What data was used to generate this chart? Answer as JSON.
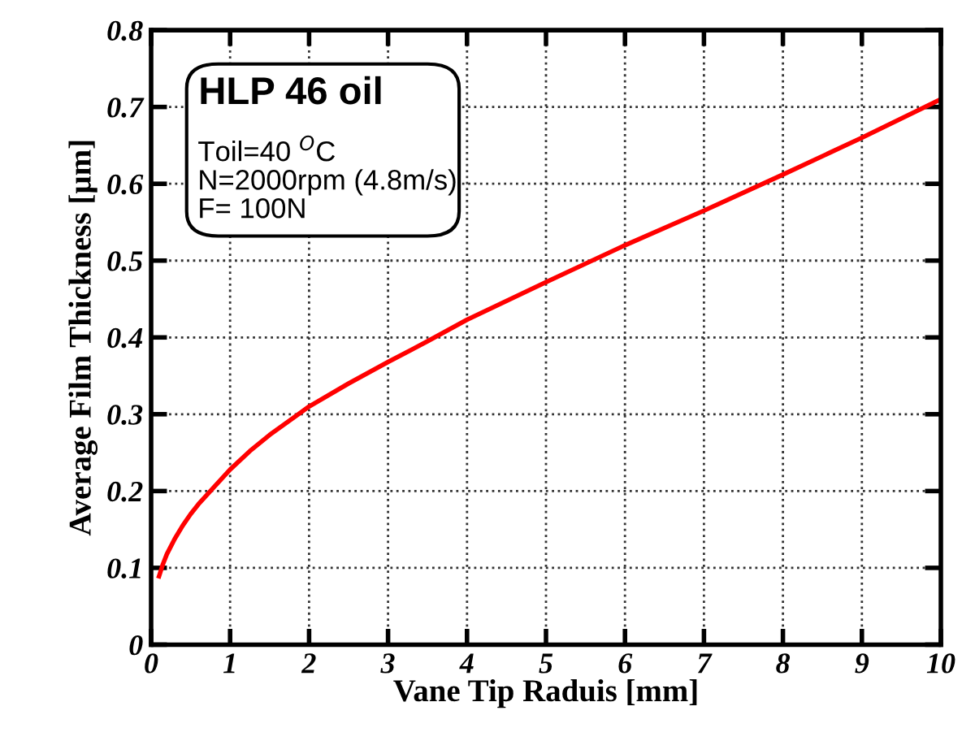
{
  "chart_data": {
    "type": "line",
    "xlabel": "Vane Tip Raduis [mm]",
    "ylabel": "Average Film Thickness [µm]",
    "annotations": [
      "HLP 46 oil",
      "Toil=40 $^{O}$C",
      "N=2000rpm (4.8m/s)",
      "F= 100N"
    ],
    "series": [
      {
        "color": "#ff0000",
        "x": [
          0.1,
          0.15,
          0.2,
          0.3,
          0.4,
          0.5,
          0.6,
          0.75,
          1,
          1.25,
          1.5,
          2,
          2.5,
          3,
          3.5,
          4,
          5,
          6,
          7,
          8,
          9,
          10
        ],
        "values": [
          0.089,
          0.105,
          0.118,
          0.138,
          0.155,
          0.17,
          0.183,
          0.2,
          0.228,
          0.252,
          0.273,
          0.31,
          0.34,
          0.368,
          0.395,
          0.423,
          0.472,
          0.52,
          0.565,
          0.612,
          0.66,
          0.71
        ]
      }
    ],
    "xlim": [
      0,
      10
    ],
    "xticks": [
      0,
      1,
      2,
      3,
      4,
      5,
      6,
      7,
      8,
      9,
      10
    ],
    "ylim": [
      0,
      0.8
    ],
    "yticks": [
      0,
      0.1,
      0.2,
      0.3,
      0.4,
      0.5,
      0.6,
      0.7,
      0.8
    ],
    "grid": true,
    "line_style": "solid",
    "marker": "none",
    "legend": false
  }
}
